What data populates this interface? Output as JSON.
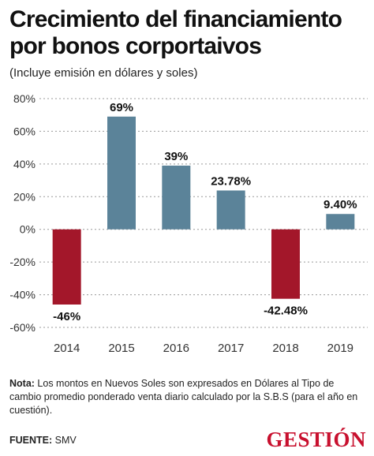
{
  "title": "Crecimiento del financiamiento por bonos corportaivos",
  "subtitle": "(Incluye emisión en dólares y soles)",
  "note": {
    "label": "Nota:",
    "text": " Los montos en Nuevos Soles son expresados en Dólares al Tipo de cambio promedio ponderado venta diario calculado por la S.B.S (para el año en cuestión)."
  },
  "source": {
    "label": "FUENTE:",
    "text": " SMV"
  },
  "logo": "GESTIÓN",
  "colors": {
    "positive": "#5b8399",
    "negative": "#a3172a",
    "grid": "#9a9a9a",
    "logo": "#c8102e"
  },
  "chart_data": {
    "type": "bar",
    "categories": [
      "2014",
      "2015",
      "2016",
      "2017",
      "2018",
      "2019"
    ],
    "values": [
      -46,
      69,
      39,
      23.78,
      -42.48,
      9.4
    ],
    "data_labels": [
      "-46%",
      "69%",
      "39%",
      "23.78%",
      "-42.48%",
      "9.40%"
    ],
    "ylim": [
      -60,
      80
    ],
    "yticks": [
      80,
      60,
      40,
      20,
      0,
      -20,
      -40,
      -60
    ],
    "ytick_labels": [
      "80%",
      "60%",
      "40%",
      "20%",
      "0%",
      "-20%",
      "-40%",
      "-60%"
    ],
    "grid": "horizontal dotted",
    "legend": "none"
  }
}
